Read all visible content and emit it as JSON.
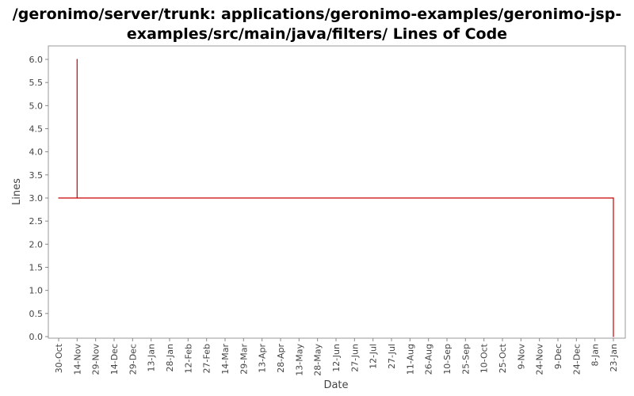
{
  "chart_data": {
    "type": "line",
    "title_line1": "/geronimo/server/trunk: applications/geronimo-examples/geronimo-jsp-",
    "title_line2": "examples/src/main/java/filters/ Lines of Code",
    "xlabel": "Date",
    "ylabel": "Lines",
    "ylim": [
      0.0,
      6.0
    ],
    "y_ticks": [
      "0.0",
      "0.5",
      "1.0",
      "1.5",
      "2.0",
      "2.5",
      "3.0",
      "3.5",
      "4.0",
      "4.5",
      "5.0",
      "5.5",
      "6.0"
    ],
    "x_ticks": [
      "30-Oct",
      "14-Nov",
      "29-Nov",
      "14-Dec",
      "29-Dec",
      "13-Jan",
      "28-Jan",
      "12-Feb",
      "27-Feb",
      "14-Mar",
      "29-Mar",
      "13-Apr",
      "28-Apr",
      "13-May",
      "28-May",
      "12-Jun",
      "27-Jun",
      "12-Jul",
      "27-Jul",
      "11-Aug",
      "26-Aug",
      "10-Sep",
      "25-Sep",
      "10-Oct",
      "25-Oct",
      "9-Nov",
      "24-Nov",
      "9-Dec",
      "24-Dec",
      "8-Jan",
      "23-Jan"
    ],
    "grid": false,
    "legend": "none",
    "series_color": "#cc0000",
    "series": [
      {
        "points": [
          {
            "x": "30-Oct",
            "y": 3.0
          },
          {
            "x": "14-Nov",
            "y": 3.0
          },
          {
            "x": "14-Nov",
            "y": 6.0
          },
          {
            "x": "14-Nov",
            "y": 3.0
          },
          {
            "x": "23-Jan",
            "y": 3.0
          },
          {
            "x": "23-Jan",
            "y": 0.0
          }
        ]
      }
    ]
  }
}
